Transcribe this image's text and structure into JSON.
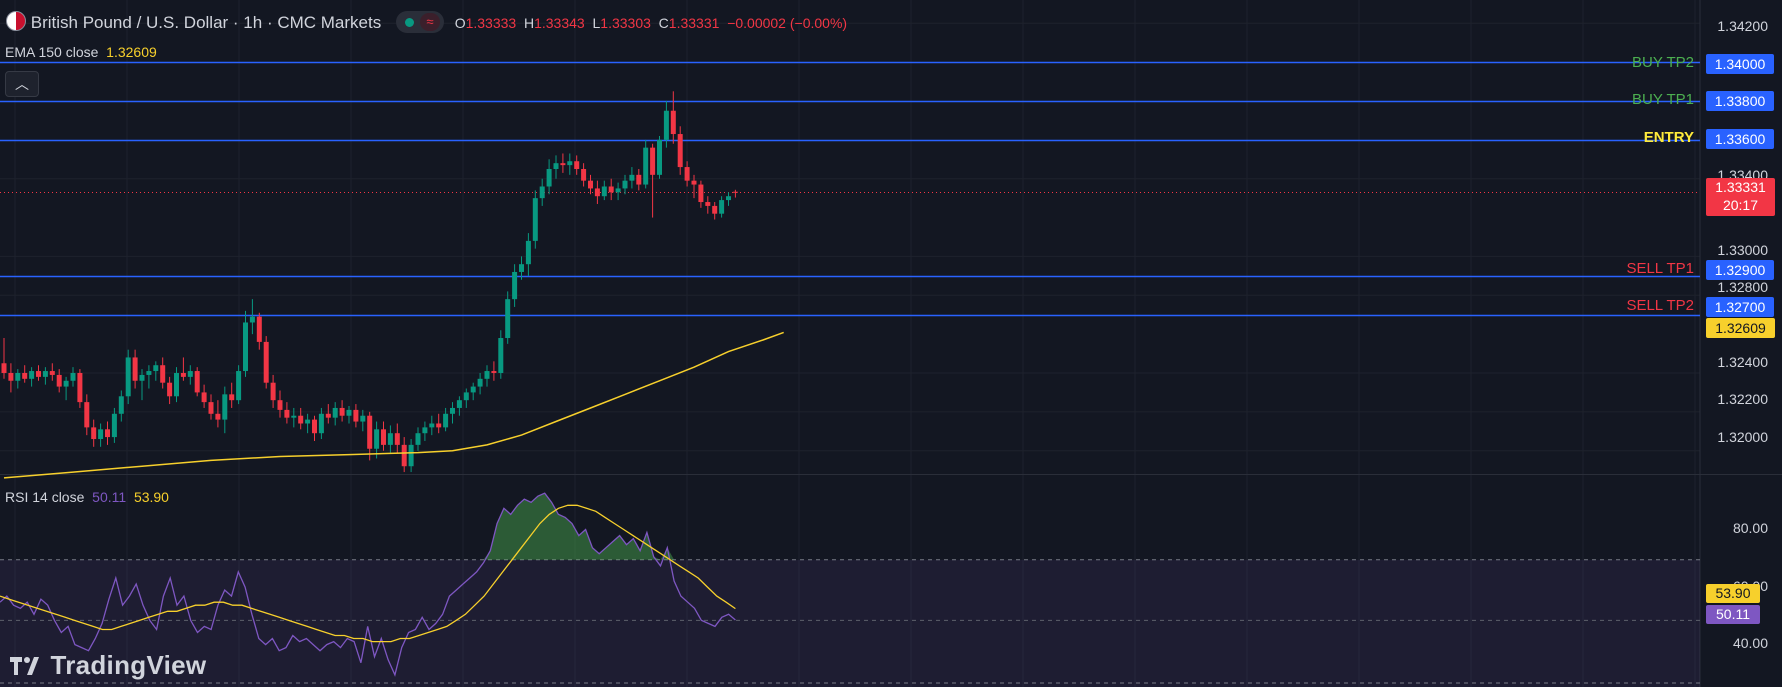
{
  "header": {
    "symbol_title": "British Pound / U.S. Dollar · 1h · CMC Markets",
    "ohlc": [
      {
        "key": "O",
        "value": "1.33333"
      },
      {
        "key": "H",
        "value": "1.33343"
      },
      {
        "key": "L",
        "value": "1.33303"
      },
      {
        "key": "C",
        "value": "1.33331"
      }
    ],
    "change": "−0.00002 (−0.00%)",
    "flag_icon": "gb-us-flag-icon"
  },
  "ema": {
    "label": "EMA 150 close",
    "value": "1.32609",
    "color": "#f7d02c"
  },
  "rsi": {
    "label": "RSI 14 close",
    "value": "50.11",
    "ma_value": "53.90",
    "color": "#7e57c2",
    "ma_color": "#f7d02c"
  },
  "levels": [
    {
      "label": "BUY TP2",
      "price": "1.34000",
      "value": 1.34,
      "label_color": "#4caf50"
    },
    {
      "label": "BUY TP1",
      "price": "1.33800",
      "value": 1.338,
      "label_color": "#4caf50"
    },
    {
      "label": "ENTRY",
      "price": "1.33600",
      "value": 1.336,
      "label_color": "#ffeb3b"
    },
    {
      "label": "SELL TP1",
      "price": "1.32900",
      "value": 1.329,
      "label_color": "#f23645"
    },
    {
      "label": "SELL TP2",
      "price": "1.32700",
      "value": 1.327,
      "label_color": "#f23645"
    }
  ],
  "price_axis": {
    "ticks": [
      "1.34200",
      "1.33400",
      "1.33000",
      "1.32800",
      "1.32400",
      "1.32200",
      "1.32000"
    ],
    "tick_values": [
      1.342,
      1.334,
      1.33,
      1.328,
      1.324,
      1.322,
      1.32
    ],
    "last_price": "1.33331",
    "last_price_value": 1.33331,
    "countdown": "20:17",
    "ema_badge": "1.32609"
  },
  "rsi_axis": {
    "ticks": [
      "80.00",
      "60.00",
      "40.00"
    ],
    "tick_values": [
      80,
      60,
      40
    ]
  },
  "branding": {
    "logo_text": "TradingView",
    "logo_icon": "tradingview-logo-icon"
  },
  "colors": {
    "up": "#089981",
    "down": "#f23645",
    "level_line": "#2962ff",
    "background": "#131722"
  },
  "chart_data": {
    "type": "candlestick",
    "timeframe": "1h",
    "ylim": [
      1.3188,
      1.3432
    ],
    "rsi_ylim": [
      28,
      98
    ],
    "candles": [
      {
        "o": 1.3245,
        "h": 1.3258,
        "l": 1.3237,
        "c": 1.324
      },
      {
        "o": 1.324,
        "h": 1.3245,
        "l": 1.323,
        "c": 1.3236
      },
      {
        "o": 1.3236,
        "h": 1.3242,
        "l": 1.3232,
        "c": 1.324
      },
      {
        "o": 1.324,
        "h": 1.3244,
        "l": 1.3235,
        "c": 1.3237
      },
      {
        "o": 1.3237,
        "h": 1.3243,
        "l": 1.3233,
        "c": 1.3241
      },
      {
        "o": 1.3241,
        "h": 1.3244,
        "l": 1.3236,
        "c": 1.3238
      },
      {
        "o": 1.3238,
        "h": 1.3243,
        "l": 1.3234,
        "c": 1.3241
      },
      {
        "o": 1.3241,
        "h": 1.3245,
        "l": 1.3236,
        "c": 1.3239
      },
      {
        "o": 1.3239,
        "h": 1.3242,
        "l": 1.323,
        "c": 1.3233
      },
      {
        "o": 1.3233,
        "h": 1.3238,
        "l": 1.3226,
        "c": 1.3236
      },
      {
        "o": 1.3236,
        "h": 1.3243,
        "l": 1.3233,
        "c": 1.324
      },
      {
        "o": 1.324,
        "h": 1.3242,
        "l": 1.3222,
        "c": 1.3225
      },
      {
        "o": 1.3225,
        "h": 1.3229,
        "l": 1.3208,
        "c": 1.3212
      },
      {
        "o": 1.3212,
        "h": 1.3216,
        "l": 1.3202,
        "c": 1.3206
      },
      {
        "o": 1.3206,
        "h": 1.3214,
        "l": 1.3202,
        "c": 1.3211
      },
      {
        "o": 1.3211,
        "h": 1.3215,
        "l": 1.3203,
        "c": 1.3207
      },
      {
        "o": 1.3207,
        "h": 1.3222,
        "l": 1.3204,
        "c": 1.3219
      },
      {
        "o": 1.3219,
        "h": 1.3231,
        "l": 1.3215,
        "c": 1.3228
      },
      {
        "o": 1.3228,
        "h": 1.3252,
        "l": 1.3224,
        "c": 1.3248
      },
      {
        "o": 1.3248,
        "h": 1.3252,
        "l": 1.3232,
        "c": 1.3236
      },
      {
        "o": 1.3236,
        "h": 1.3242,
        "l": 1.3226,
        "c": 1.3239
      },
      {
        "o": 1.3239,
        "h": 1.3244,
        "l": 1.3232,
        "c": 1.3241
      },
      {
        "o": 1.3241,
        "h": 1.3246,
        "l": 1.3236,
        "c": 1.3244
      },
      {
        "o": 1.3244,
        "h": 1.3248,
        "l": 1.3232,
        "c": 1.3235
      },
      {
        "o": 1.3235,
        "h": 1.3238,
        "l": 1.3224,
        "c": 1.3228
      },
      {
        "o": 1.3228,
        "h": 1.3243,
        "l": 1.3225,
        "c": 1.324
      },
      {
        "o": 1.324,
        "h": 1.3248,
        "l": 1.3236,
        "c": 1.3238
      },
      {
        "o": 1.3238,
        "h": 1.3244,
        "l": 1.3234,
        "c": 1.3241
      },
      {
        "o": 1.3241,
        "h": 1.3243,
        "l": 1.3228,
        "c": 1.323
      },
      {
        "o": 1.323,
        "h": 1.3234,
        "l": 1.3222,
        "c": 1.3225
      },
      {
        "o": 1.3225,
        "h": 1.3229,
        "l": 1.3216,
        "c": 1.3219
      },
      {
        "o": 1.3219,
        "h": 1.3226,
        "l": 1.3212,
        "c": 1.3216
      },
      {
        "o": 1.3216,
        "h": 1.3233,
        "l": 1.3209,
        "c": 1.3229
      },
      {
        "o": 1.3229,
        "h": 1.3235,
        "l": 1.3222,
        "c": 1.3226
      },
      {
        "o": 1.3226,
        "h": 1.3244,
        "l": 1.3224,
        "c": 1.3241
      },
      {
        "o": 1.3241,
        "h": 1.3272,
        "l": 1.3238,
        "c": 1.3266
      },
      {
        "o": 1.3266,
        "h": 1.3278,
        "l": 1.326,
        "c": 1.3269
      },
      {
        "o": 1.3269,
        "h": 1.3271,
        "l": 1.3252,
        "c": 1.3256
      },
      {
        "o": 1.3256,
        "h": 1.3259,
        "l": 1.3232,
        "c": 1.3235
      },
      {
        "o": 1.3235,
        "h": 1.3239,
        "l": 1.3222,
        "c": 1.3226
      },
      {
        "o": 1.3226,
        "h": 1.3231,
        "l": 1.3217,
        "c": 1.3221
      },
      {
        "o": 1.3221,
        "h": 1.3225,
        "l": 1.3214,
        "c": 1.3217
      },
      {
        "o": 1.3217,
        "h": 1.3222,
        "l": 1.3212,
        "c": 1.3218
      },
      {
        "o": 1.3218,
        "h": 1.3222,
        "l": 1.3211,
        "c": 1.3214
      },
      {
        "o": 1.3214,
        "h": 1.3219,
        "l": 1.3209,
        "c": 1.3216
      },
      {
        "o": 1.3216,
        "h": 1.3218,
        "l": 1.3205,
        "c": 1.3209
      },
      {
        "o": 1.3209,
        "h": 1.3222,
        "l": 1.3206,
        "c": 1.3219
      },
      {
        "o": 1.3219,
        "h": 1.3224,
        "l": 1.3214,
        "c": 1.3217
      },
      {
        "o": 1.3217,
        "h": 1.3225,
        "l": 1.3213,
        "c": 1.3222
      },
      {
        "o": 1.3222,
        "h": 1.3226,
        "l": 1.3215,
        "c": 1.3218
      },
      {
        "o": 1.3218,
        "h": 1.3223,
        "l": 1.3214,
        "c": 1.3221
      },
      {
        "o": 1.3221,
        "h": 1.3224,
        "l": 1.3212,
        "c": 1.3215
      },
      {
        "o": 1.3215,
        "h": 1.3221,
        "l": 1.321,
        "c": 1.3218
      },
      {
        "o": 1.3218,
        "h": 1.322,
        "l": 1.3195,
        "c": 1.3201
      },
      {
        "o": 1.3201,
        "h": 1.3215,
        "l": 1.3196,
        "c": 1.3211
      },
      {
        "o": 1.3211,
        "h": 1.3215,
        "l": 1.32,
        "c": 1.3203
      },
      {
        "o": 1.3203,
        "h": 1.3213,
        "l": 1.3199,
        "c": 1.3209
      },
      {
        "o": 1.3209,
        "h": 1.3214,
        "l": 1.3199,
        "c": 1.3203
      },
      {
        "o": 1.3203,
        "h": 1.3207,
        "l": 1.3189,
        "c": 1.3192
      },
      {
        "o": 1.3192,
        "h": 1.3206,
        "l": 1.3189,
        "c": 1.3203
      },
      {
        "o": 1.3203,
        "h": 1.3212,
        "l": 1.32,
        "c": 1.3209
      },
      {
        "o": 1.3209,
        "h": 1.3215,
        "l": 1.3205,
        "c": 1.3212
      },
      {
        "o": 1.3212,
        "h": 1.3218,
        "l": 1.3208,
        "c": 1.3214
      },
      {
        "o": 1.3214,
        "h": 1.3219,
        "l": 1.3209,
        "c": 1.3212
      },
      {
        "o": 1.3212,
        "h": 1.3222,
        "l": 1.321,
        "c": 1.3219
      },
      {
        "o": 1.3219,
        "h": 1.3225,
        "l": 1.3214,
        "c": 1.3222
      },
      {
        "o": 1.3222,
        "h": 1.3228,
        "l": 1.3218,
        "c": 1.3226
      },
      {
        "o": 1.3226,
        "h": 1.3232,
        "l": 1.3222,
        "c": 1.323
      },
      {
        "o": 1.323,
        "h": 1.3235,
        "l": 1.3226,
        "c": 1.3233
      },
      {
        "o": 1.3233,
        "h": 1.324,
        "l": 1.3229,
        "c": 1.3237
      },
      {
        "o": 1.3237,
        "h": 1.3244,
        "l": 1.3233,
        "c": 1.3241
      },
      {
        "o": 1.3241,
        "h": 1.3246,
        "l": 1.3236,
        "c": 1.324
      },
      {
        "o": 1.324,
        "h": 1.3262,
        "l": 1.3237,
        "c": 1.3258
      },
      {
        "o": 1.3258,
        "h": 1.3282,
        "l": 1.3255,
        "c": 1.3278
      },
      {
        "o": 1.3278,
        "h": 1.3296,
        "l": 1.3274,
        "c": 1.3292
      },
      {
        "o": 1.3292,
        "h": 1.33,
        "l": 1.3288,
        "c": 1.3296
      },
      {
        "o": 1.3296,
        "h": 1.3312,
        "l": 1.329,
        "c": 1.3308
      },
      {
        "o": 1.3308,
        "h": 1.3334,
        "l": 1.3304,
        "c": 1.333
      },
      {
        "o": 1.333,
        "h": 1.334,
        "l": 1.3326,
        "c": 1.3336
      },
      {
        "o": 1.3336,
        "h": 1.335,
        "l": 1.3332,
        "c": 1.3345
      },
      {
        "o": 1.3345,
        "h": 1.3352,
        "l": 1.334,
        "c": 1.3348
      },
      {
        "o": 1.3348,
        "h": 1.3353,
        "l": 1.3343,
        "c": 1.3347
      },
      {
        "o": 1.3347,
        "h": 1.3353,
        "l": 1.3342,
        "c": 1.3349
      },
      {
        "o": 1.3349,
        "h": 1.3352,
        "l": 1.3342,
        "c": 1.3345
      },
      {
        "o": 1.3345,
        "h": 1.3348,
        "l": 1.3336,
        "c": 1.3339
      },
      {
        "o": 1.3339,
        "h": 1.3342,
        "l": 1.3332,
        "c": 1.3335
      },
      {
        "o": 1.3335,
        "h": 1.3339,
        "l": 1.3327,
        "c": 1.3331
      },
      {
        "o": 1.3331,
        "h": 1.3339,
        "l": 1.3329,
        "c": 1.3336
      },
      {
        "o": 1.3336,
        "h": 1.334,
        "l": 1.3329,
        "c": 1.3333
      },
      {
        "o": 1.3333,
        "h": 1.3338,
        "l": 1.3329,
        "c": 1.3335
      },
      {
        "o": 1.3335,
        "h": 1.3342,
        "l": 1.3332,
        "c": 1.3339
      },
      {
        "o": 1.3339,
        "h": 1.3346,
        "l": 1.3335,
        "c": 1.3342
      },
      {
        "o": 1.3342,
        "h": 1.3345,
        "l": 1.3334,
        "c": 1.3337
      },
      {
        "o": 1.3337,
        "h": 1.336,
        "l": 1.3335,
        "c": 1.3356
      },
      {
        "o": 1.3356,
        "h": 1.3358,
        "l": 1.332,
        "c": 1.3342
      },
      {
        "o": 1.3342,
        "h": 1.3362,
        "l": 1.334,
        "c": 1.336
      },
      {
        "o": 1.336,
        "h": 1.338,
        "l": 1.3356,
        "c": 1.3375
      },
      {
        "o": 1.3375,
        "h": 1.3385,
        "l": 1.3358,
        "c": 1.3363
      },
      {
        "o": 1.3363,
        "h": 1.3367,
        "l": 1.3342,
        "c": 1.3346
      },
      {
        "o": 1.3346,
        "h": 1.3349,
        "l": 1.3336,
        "c": 1.3339
      },
      {
        "o": 1.3339,
        "h": 1.3342,
        "l": 1.333,
        "c": 1.3337
      },
      {
        "o": 1.3337,
        "h": 1.3339,
        "l": 1.3325,
        "c": 1.3328
      },
      {
        "o": 1.3328,
        "h": 1.3331,
        "l": 1.3322,
        "c": 1.3326
      },
      {
        "o": 1.3326,
        "h": 1.3328,
        "l": 1.3319,
        "c": 1.3322
      },
      {
        "o": 1.3322,
        "h": 1.3331,
        "l": 1.332,
        "c": 1.3329
      },
      {
        "o": 1.3329,
        "h": 1.3333,
        "l": 1.3326,
        "c": 1.3331
      },
      {
        "o": 1.33333,
        "h": 1.33343,
        "l": 1.33303,
        "c": 1.33331
      }
    ],
    "ema150": [
      [
        0,
        1.3186
      ],
      [
        10,
        1.3189
      ],
      [
        20,
        1.3192
      ],
      [
        30,
        1.3195
      ],
      [
        40,
        1.3197
      ],
      [
        50,
        1.3198
      ],
      [
        60,
        1.3199
      ],
      [
        65,
        1.32
      ],
      [
        70,
        1.3203
      ],
      [
        75,
        1.3208
      ],
      [
        80,
        1.3215
      ],
      [
        85,
        1.3222
      ],
      [
        90,
        1.3229
      ],
      [
        95,
        1.3236
      ],
      [
        100,
        1.3243
      ],
      [
        105,
        1.3251
      ],
      [
        110,
        1.3257
      ],
      [
        113,
        1.32609
      ]
    ],
    "rsi14": [
      56,
      58,
      55,
      54,
      56,
      52,
      57,
      55,
      50,
      46,
      48,
      42,
      41,
      40,
      44,
      49,
      57,
      64,
      55,
      58,
      62,
      55,
      50,
      47,
      58,
      64,
      55,
      58,
      50,
      46,
      48,
      47,
      55,
      60,
      58,
      66,
      61,
      52,
      44,
      42,
      44,
      40,
      41,
      45,
      43,
      44,
      42,
      40,
      42,
      43,
      41,
      44,
      43,
      36,
      48,
      38,
      44,
      37,
      32,
      41,
      46,
      47,
      51,
      47,
      49,
      52,
      58,
      60,
      62,
      64,
      66,
      69,
      73,
      82,
      87,
      85,
      88,
      90,
      89,
      91,
      92,
      89,
      85,
      84,
      82,
      78,
      80,
      74,
      72,
      74,
      76,
      78,
      75,
      77,
      73,
      79,
      71,
      68,
      74,
      63,
      58,
      56,
      54,
      50,
      49,
      48,
      51,
      52,
      50.11
    ],
    "rsi_ma": [
      58,
      57,
      56,
      55,
      54,
      53,
      52,
      51,
      50,
      49,
      48,
      47,
      47,
      48,
      49,
      50,
      51,
      52,
      53,
      53,
      54,
      55,
      55,
      56,
      56,
      55,
      55,
      54,
      53,
      52,
      51,
      50,
      49,
      48,
      47,
      46,
      45,
      45,
      44,
      44,
      43,
      43,
      43,
      44,
      44,
      45,
      46,
      47,
      48,
      50,
      52,
      55,
      58,
      62,
      66,
      70,
      74,
      78,
      82,
      85,
      87,
      88,
      88,
      87,
      86,
      84,
      82,
      80,
      78,
      76,
      74,
      72,
      70,
      68,
      66,
      64,
      61,
      58,
      56,
      53.9
    ]
  }
}
